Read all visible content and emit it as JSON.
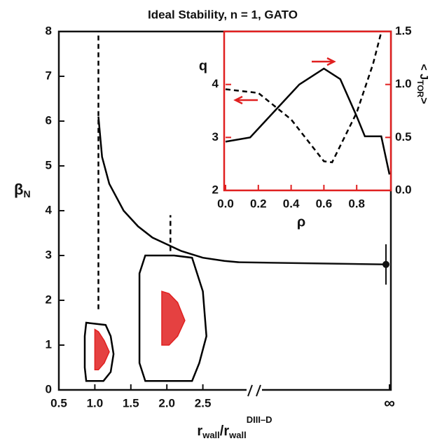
{
  "chart_data": [
    {
      "type": "line",
      "title": "Ideal Stability, n = 1, GATO",
      "x_label": [
        "r",
        "wall",
        "/r",
        "wall",
        "DIII–D"
      ],
      "y_label": [
        "β",
        "N"
      ],
      "xlim": [
        0.5,
        3.0
      ],
      "ylim": [
        0,
        8
      ],
      "xticks": [
        {
          "value": 0.5,
          "label": "0.5"
        },
        {
          "value": 1.0,
          "label": "1.0"
        },
        {
          "value": 1.5,
          "label": "1.5"
        },
        {
          "value": 2.0,
          "label": "2.0"
        },
        {
          "value": 2.5,
          "label": "2.5"
        }
      ],
      "yticks": [
        0,
        1,
        2,
        3,
        4,
        5,
        6,
        7,
        8
      ],
      "infinity": {
        "label": "∞",
        "value": 2.8,
        "error": 0.45
      },
      "series": [
        {
          "color": "#000000",
          "x": [
            1.05,
            1.1,
            1.2,
            1.4,
            1.6,
            1.8,
            2.0,
            2.2,
            2.5,
            2.8,
            3.0
          ],
          "values": [
            6.1,
            5.2,
            4.6,
            4.0,
            3.65,
            3.4,
            3.25,
            3.1,
            2.95,
            2.88,
            2.85
          ]
        },
        {
          "color": "#000000",
          "dash": true,
          "x": [
            1.05,
            1.05
          ],
          "values": [
            1.8,
            8
          ]
        },
        {
          "color": "#000000",
          "dash": true,
          "x": [
            2.05,
            2.05
          ],
          "values": [
            3.1,
            3.9
          ]
        },
        {
          "color": "#000000",
          "closed": true,
          "x": [
            0.88,
            1.15,
            1.22,
            1.26,
            1.22,
            1.12,
            0.88,
            0.86,
            0.86
          ],
          "values": [
            1.5,
            1.45,
            1.2,
            0.8,
            0.4,
            0.2,
            0.2,
            0.5,
            1.2
          ]
        },
        {
          "color": "#e02020",
          "closed": true,
          "fill": true,
          "x": [
            1.0,
            1.05,
            1.13,
            1.2,
            1.13,
            1.05,
            1.0
          ],
          "values": [
            1.35,
            1.3,
            1.1,
            0.85,
            0.6,
            0.45,
            0.45
          ]
        },
        {
          "color": "#000000",
          "closed": true,
          "x": [
            1.7,
            2.1,
            2.35,
            2.5,
            2.55,
            2.45,
            2.35,
            1.7,
            1.62,
            1.62
          ],
          "values": [
            3.0,
            3.0,
            2.95,
            2.2,
            1.2,
            0.6,
            0.2,
            0.2,
            0.6,
            2.6
          ]
        },
        {
          "color": "#e02020",
          "closed": true,
          "fill": true,
          "x": [
            1.93,
            2.03,
            2.15,
            2.25,
            2.15,
            2.03,
            1.93
          ],
          "values": [
            2.2,
            2.15,
            1.95,
            1.55,
            1.2,
            1.0,
            1.0
          ]
        }
      ]
    },
    {
      "type": "line",
      "x_label": "ρ",
      "y_label": "q",
      "y2_label": [
        "< J",
        "TOR",
        ">"
      ],
      "xlim": [
        0,
        1
      ],
      "ylim": [
        2,
        5
      ],
      "y2lim": [
        0,
        1.5
      ],
      "xticks": [
        {
          "value": 0,
          "label": "0.0"
        },
        {
          "value": 0.2,
          "label": "0.2"
        },
        {
          "value": 0.4,
          "label": "0.4"
        },
        {
          "value": 0.6,
          "label": "0.6"
        },
        {
          "value": 0.8,
          "label": "0.8"
        }
      ],
      "yticks": [
        2,
        3,
        4
      ],
      "y2ticks": [
        {
          "value": 0,
          "label": "0.0"
        },
        {
          "value": 0.5,
          "label": "0.5"
        },
        {
          "value": 1,
          "label": "1.0"
        },
        {
          "value": 1.5,
          "label": "1.5"
        }
      ],
      "frame_color": "#e02020",
      "series": [
        {
          "color": "#000000",
          "dash": true,
          "x": [
            0,
            0.2,
            0.4,
            0.6,
            0.65,
            0.8,
            0.9,
            0.95
          ],
          "values": [
            3.91,
            3.84,
            3.34,
            2.55,
            2.53,
            3.47,
            4.39,
            4.99
          ]
        },
        {
          "color": "#000000",
          "axis": "y2",
          "x": [
            0,
            0.15,
            0.3,
            0.45,
            0.6,
            0.7,
            0.8,
            0.85,
            0.95,
            1.0
          ],
          "values": [
            0.46,
            0.5,
            0.75,
            1.0,
            1.15,
            1.05,
            0.7,
            0.51,
            0.51,
            0.15
          ]
        }
      ]
    }
  ]
}
